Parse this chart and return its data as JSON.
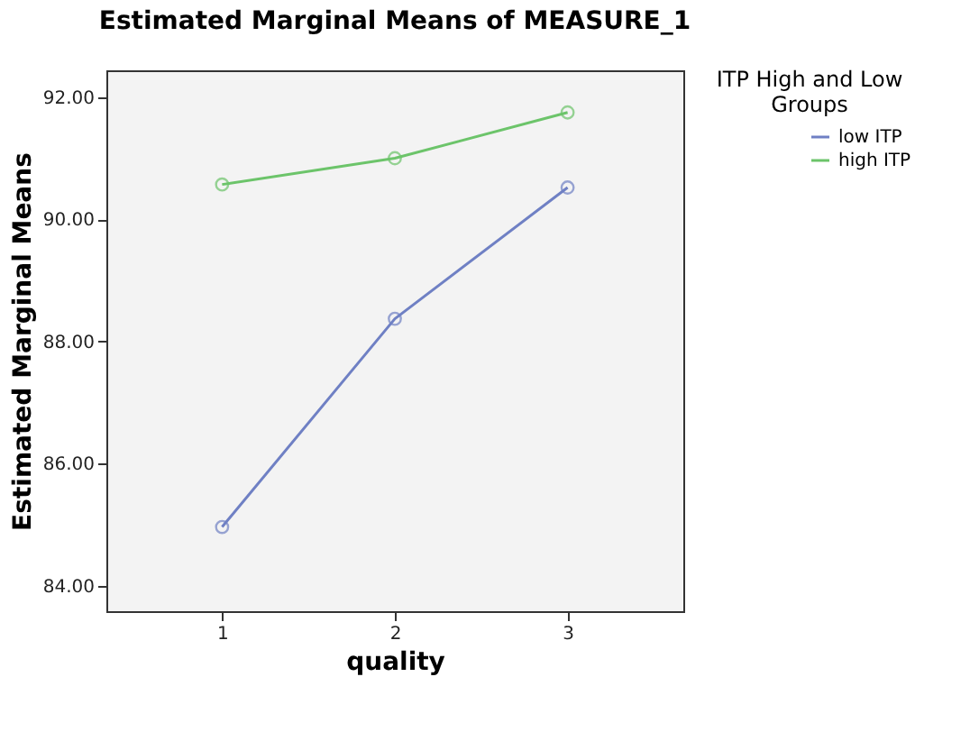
{
  "chart_data": {
    "type": "line",
    "title": "Estimated Marginal Means of MEASURE_1",
    "xlabel": "quality",
    "ylabel": "Estimated Marginal Means",
    "legend_title": "ITP High and Low Groups",
    "categories": [
      "1",
      "2",
      "3"
    ],
    "series": [
      {
        "name": "low ITP",
        "color": "#6f80c4",
        "values": [
          84.96,
          88.37,
          90.52
        ]
      },
      {
        "name": "high ITP",
        "color": "#6cc46a",
        "values": [
          90.57,
          91.0,
          91.75
        ]
      }
    ],
    "ylim": [
      83.58,
      92.44
    ],
    "yticks": [
      {
        "value": 84,
        "label": "84.00"
      },
      {
        "value": 86,
        "label": "86.00"
      },
      {
        "value": 88,
        "label": "88.00"
      },
      {
        "value": 90,
        "label": "90.00"
      },
      {
        "value": 92,
        "label": "92.00"
      }
    ],
    "marker": "circle",
    "line_style": "solid",
    "legend": "top right",
    "grid": false
  }
}
